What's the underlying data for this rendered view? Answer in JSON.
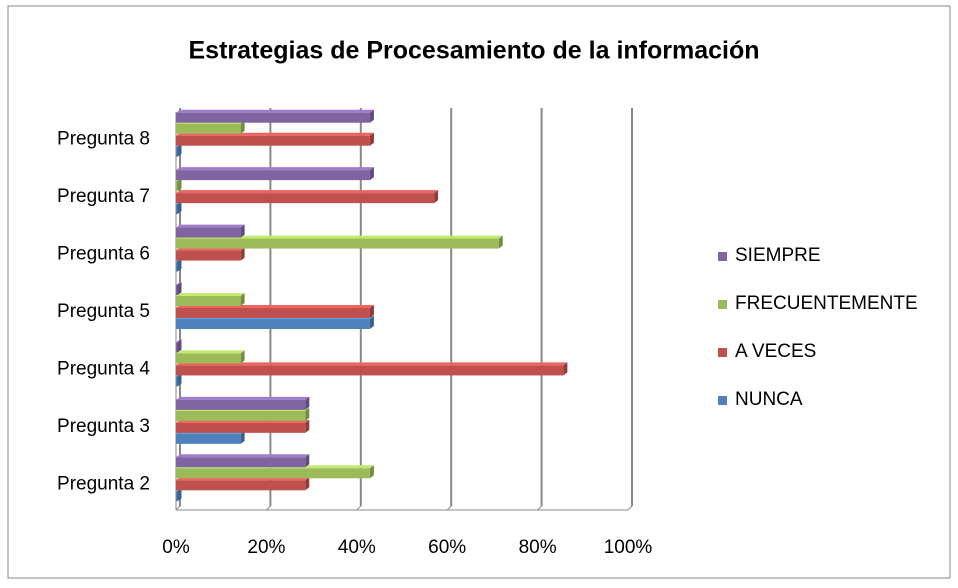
{
  "chart_data": {
    "type": "bar",
    "orientation": "horizontal",
    "title": "Estrategias de Procesamiento de la información",
    "categories": [
      "Pregunta 2",
      "Pregunta 3",
      "Pregunta 4",
      "Pregunta 5",
      "Pregunta 6",
      "Pregunta 7",
      "Pregunta 8"
    ],
    "series": [
      {
        "name": "NUNCA",
        "color": "#4f81bd",
        "values": [
          0,
          14.3,
          0,
          42.9,
          0,
          0,
          0
        ]
      },
      {
        "name": "A VECES",
        "color": "#c0504d",
        "values": [
          28.6,
          28.6,
          85.7,
          42.9,
          14.3,
          57.1,
          42.9
        ]
      },
      {
        "name": "FRECUENTEMENTE",
        "color": "#9bbb59",
        "values": [
          42.9,
          28.6,
          14.3,
          14.3,
          71.4,
          0,
          14.3
        ]
      },
      {
        "name": "SIEMPRE",
        "color": "#8064a2",
        "values": [
          28.6,
          28.6,
          0,
          0,
          14.3,
          42.9,
          42.9
        ]
      }
    ],
    "xlim": [
      0,
      100
    ],
    "xticks": [
      {
        "value": 0,
        "label": "0%"
      },
      {
        "value": 20,
        "label": "20%"
      },
      {
        "value": 40,
        "label": "40%"
      },
      {
        "value": 60,
        "label": "60%"
      },
      {
        "value": 80,
        "label": "80%"
      },
      {
        "value": 100,
        "label": "100%"
      }
    ],
    "grid": true,
    "legend": "right"
  }
}
